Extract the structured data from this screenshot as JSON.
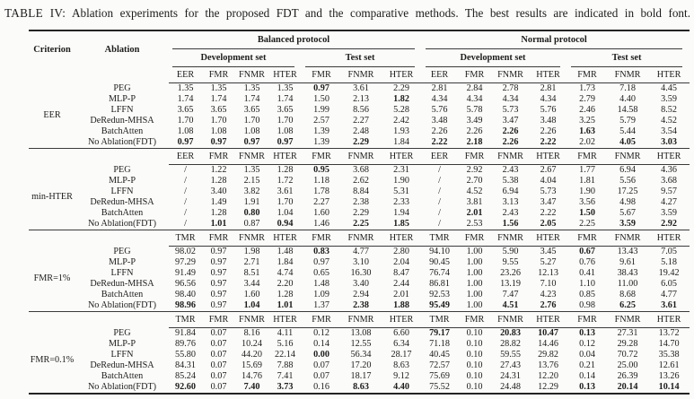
{
  "caption": {
    "tag": "TABLE IV:",
    "text": "Ablation experiments for the proposed FDT and the comparative methods. The best results are indicated in bold font."
  },
  "table": {
    "criterion_header": "Criterion",
    "ablation_header": "Ablation",
    "protocols": [
      "Balanced protocol",
      "Normal protocol"
    ],
    "sets": [
      "Development set",
      "Test set"
    ],
    "groups": [
      {
        "criterion": "EER",
        "col_headers": [
          "EER",
          "FMR",
          "FNMR",
          "HTER",
          "FMR",
          "FNMR",
          "HTER",
          "EER",
          "FMR",
          "FNMR",
          "HTER",
          "FMR",
          "FNMR",
          "HTER"
        ],
        "rows": [
          {
            "ablation": "PEG",
            "cells": [
              "1.35",
              "1.35",
              "1.35",
              "1.35",
              "0.97",
              "3.61",
              "2.29",
              "2.81",
              "2.84",
              "2.78",
              "2.81",
              "1.73",
              "7.18",
              "4.45"
            ],
            "bold": [
              4
            ]
          },
          {
            "ablation": "MLP-P",
            "cells": [
              "1.74",
              "1.74",
              "1.74",
              "1.74",
              "1.50",
              "2.13",
              "1.82",
              "4.34",
              "4.34",
              "4.34",
              "4.34",
              "2.79",
              "4.40",
              "3.59"
            ],
            "bold": [
              6
            ]
          },
          {
            "ablation": "LFFN",
            "cells": [
              "3.65",
              "3.65",
              "3.65",
              "3.65",
              "1.99",
              "8.56",
              "5.28",
              "5.76",
              "5.78",
              "5.73",
              "5.76",
              "2.46",
              "14.58",
              "8.52"
            ],
            "bold": []
          },
          {
            "ablation": "DeRedun-MHSA",
            "cells": [
              "1.70",
              "1.70",
              "1.70",
              "1.70",
              "2.57",
              "2.27",
              "2.42",
              "3.48",
              "3.49",
              "3.47",
              "3.48",
              "3.25",
              "5.79",
              "4.52"
            ],
            "bold": []
          },
          {
            "ablation": "BatchAtten",
            "cells": [
              "1.08",
              "1.08",
              "1.08",
              "1.08",
              "1.39",
              "2.48",
              "1.93",
              "2.26",
              "2.26",
              "2.26",
              "2.26",
              "1.63",
              "5.44",
              "3.54"
            ],
            "bold": [
              9,
              11
            ]
          },
          {
            "ablation": "No Ablation(FDT)",
            "cells": [
              "0.97",
              "0.97",
              "0.97",
              "0.97",
              "1.39",
              "2.29",
              "1.84",
              "2.22",
              "2.18",
              "2.26",
              "2.22",
              "2.02",
              "4.05",
              "3.03"
            ],
            "bold": [
              0,
              1,
              2,
              3,
              5,
              7,
              8,
              9,
              10,
              12,
              13
            ]
          }
        ]
      },
      {
        "criterion": "min-HTER",
        "col_headers": [
          "EER",
          "FMR",
          "FNMR",
          "HTER",
          "FMR",
          "FNMR",
          "HTER",
          "EER",
          "FMR",
          "FNMR",
          "HTER",
          "FMR",
          "FNMR",
          "HTER"
        ],
        "rows": [
          {
            "ablation": "PEG",
            "cells": [
              "/",
              "1.22",
              "1.35",
              "1.28",
              "0.95",
              "3.68",
              "2.31",
              "/",
              "2.92",
              "2.43",
              "2.67",
              "1.77",
              "6.94",
              "4.36"
            ],
            "bold": [
              4
            ]
          },
          {
            "ablation": "MLP-P",
            "cells": [
              "/",
              "1.28",
              "2.15",
              "1.72",
              "1.18",
              "2.62",
              "1.90",
              "/",
              "2.70",
              "5.38",
              "4.04",
              "1.81",
              "5.56",
              "3.68"
            ],
            "bold": []
          },
          {
            "ablation": "LFFN",
            "cells": [
              "/",
              "3.40",
              "3.82",
              "3.61",
              "1.78",
              "8.84",
              "5.31",
              "/",
              "4.52",
              "6.94",
              "5.73",
              "1.90",
              "17.25",
              "9.57"
            ],
            "bold": []
          },
          {
            "ablation": "DeRedun-MHSA",
            "cells": [
              "/",
              "1.49",
              "1.91",
              "1.70",
              "2.27",
              "2.38",
              "2.33",
              "/",
              "3.81",
              "3.13",
              "3.47",
              "3.56",
              "4.98",
              "4.27"
            ],
            "bold": []
          },
          {
            "ablation": "BatchAtten",
            "cells": [
              "/",
              "1.28",
              "0.80",
              "1.04",
              "1.60",
              "2.29",
              "1.94",
              "/",
              "2.01",
              "2.43",
              "2.22",
              "1.50",
              "5.67",
              "3.59"
            ],
            "bold": [
              2,
              8,
              11
            ]
          },
          {
            "ablation": "No Ablation(FDT)",
            "cells": [
              "/",
              "1.01",
              "0.87",
              "0.94",
              "1.46",
              "2.25",
              "1.85",
              "/",
              "2.53",
              "1.56",
              "2.05",
              "2.25",
              "3.59",
              "2.92"
            ],
            "bold": [
              1,
              3,
              5,
              6,
              9,
              10,
              12,
              13
            ]
          }
        ]
      },
      {
        "criterion": "FMR=1%",
        "col_headers": [
          "TMR",
          "FMR",
          "FNMR",
          "HTER",
          "FMR",
          "FNMR",
          "HTER",
          "TMR",
          "FMR",
          "FNMR",
          "HTER",
          "FMR",
          "FNMR",
          "HTER"
        ],
        "rows": [
          {
            "ablation": "PEG",
            "cells": [
              "98.02",
              "0.97",
              "1.98",
              "1.48",
              "0.83",
              "4.77",
              "2.80",
              "94.10",
              "1.00",
              "5.90",
              "3.45",
              "0.67",
              "13.43",
              "7.05"
            ],
            "bold": [
              4,
              11
            ]
          },
          {
            "ablation": "MLP-P",
            "cells": [
              "97.29",
              "0.97",
              "2.71",
              "1.84",
              "0.97",
              "3.10",
              "2.04",
              "90.45",
              "1.00",
              "9.55",
              "5.27",
              "0.76",
              "9.61",
              "5.18"
            ],
            "bold": []
          },
          {
            "ablation": "LFFN",
            "cells": [
              "91.49",
              "0.97",
              "8.51",
              "4.74",
              "0.65",
              "16.30",
              "8.47",
              "76.74",
              "1.00",
              "23.26",
              "12.13",
              "0.41",
              "38.43",
              "19.42"
            ],
            "bold": []
          },
          {
            "ablation": "DeRedun-MHSA",
            "cells": [
              "96.56",
              "0.97",
              "3.44",
              "2.20",
              "1.48",
              "3.40",
              "2.44",
              "86.81",
              "1.00",
              "13.19",
              "7.10",
              "1.10",
              "11.00",
              "6.05"
            ],
            "bold": []
          },
          {
            "ablation": "BatchAtten",
            "cells": [
              "98.40",
              "0.97",
              "1.60",
              "1.28",
              "1.09",
              "2.94",
              "2.01",
              "92.53",
              "1.00",
              "7.47",
              "4.23",
              "0.85",
              "8.68",
              "4.77"
            ],
            "bold": []
          },
          {
            "ablation": "No Ablation(FDT)",
            "cells": [
              "98.96",
              "0.97",
              "1.04",
              "1.01",
              "1.37",
              "2.38",
              "1.88",
              "95.49",
              "1.00",
              "4.51",
              "2.76",
              "0.98",
              "6.25",
              "3.61"
            ],
            "bold": [
              0,
              2,
              3,
              5,
              6,
              7,
              9,
              10,
              12,
              13
            ]
          }
        ]
      },
      {
        "criterion": "FMR=0.1%",
        "col_headers": [
          "TMR",
          "FMR",
          "FNMR",
          "HTER",
          "FMR",
          "FNMR",
          "HTER",
          "TMR",
          "FMR",
          "FNMR",
          "HTER",
          "FMR",
          "FNMR",
          "HTER"
        ],
        "rows": [
          {
            "ablation": "PEG",
            "cells": [
              "91.84",
              "0.07",
              "8.16",
              "4.11",
              "0.12",
              "13.08",
              "6.60",
              "79.17",
              "0.10",
              "20.83",
              "10.47",
              "0.13",
              "27.31",
              "13.72"
            ],
            "bold": [
              7,
              9,
              10,
              11
            ]
          },
          {
            "ablation": "MLP-P",
            "cells": [
              "89.76",
              "0.07",
              "10.24",
              "5.16",
              "0.14",
              "12.55",
              "6.34",
              "71.18",
              "0.10",
              "28.82",
              "14.46",
              "0.12",
              "29.28",
              "14.70"
            ],
            "bold": []
          },
          {
            "ablation": "LFFN",
            "cells": [
              "55.80",
              "0.07",
              "44.20",
              "22.14",
              "0.00",
              "56.34",
              "28.17",
              "40.45",
              "0.10",
              "59.55",
              "29.82",
              "0.04",
              "70.72",
              "35.38"
            ],
            "bold": [
              4
            ]
          },
          {
            "ablation": "DeRedun-MHSA",
            "cells": [
              "84.31",
              "0.07",
              "15.69",
              "7.88",
              "0.07",
              "17.20",
              "8.63",
              "72.57",
              "0.10",
              "27.43",
              "13.76",
              "0.21",
              "25.00",
              "12.61"
            ],
            "bold": []
          },
          {
            "ablation": "BatchAtten",
            "cells": [
              "85.24",
              "0.07",
              "14.76",
              "7.41",
              "0.07",
              "18.17",
              "9.12",
              "75.69",
              "0.10",
              "24.31",
              "12.20",
              "0.14",
              "26.39",
              "13.26"
            ],
            "bold": []
          },
          {
            "ablation": "No Ablation(FDT)",
            "cells": [
              "92.60",
              "0.07",
              "7.40",
              "3.73",
              "0.16",
              "8.63",
              "4.40",
              "75.52",
              "0.10",
              "24.48",
              "12.29",
              "0.13",
              "20.14",
              "10.14"
            ],
            "bold": [
              0,
              2,
              3,
              5,
              6,
              11,
              12,
              13
            ]
          }
        ]
      }
    ]
  }
}
